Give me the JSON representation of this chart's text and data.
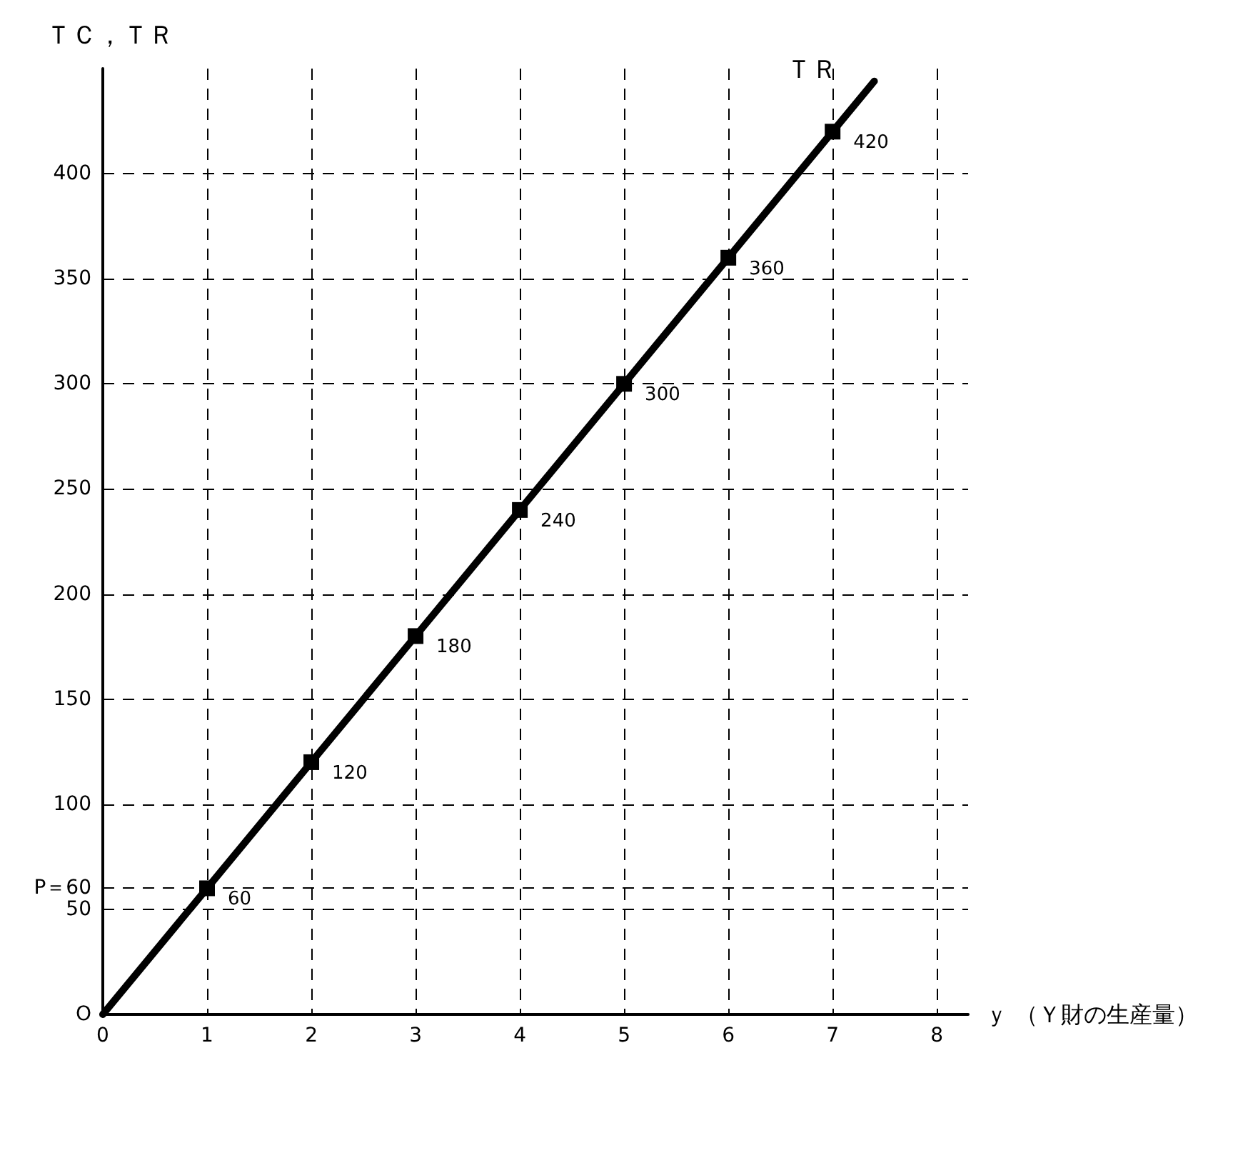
{
  "chart_data": {
    "type": "line",
    "xlabel": "ｙ （Ｙ財の生産量）",
    "ylabel": "ＴＣ，ＴＲ",
    "series": [
      {
        "name": "ＴＲ",
        "color": "#000000",
        "x": [
          0,
          1,
          2,
          3,
          4,
          5,
          6,
          7,
          7.4
        ],
        "values": [
          0,
          60,
          120,
          180,
          240,
          300,
          360,
          420,
          444
        ],
        "value_labels": [
          null,
          "60",
          "120",
          "180",
          "240",
          "300",
          "360",
          "420",
          null
        ]
      }
    ],
    "xlim": [
      0,
      8.3
    ],
    "xticks": [
      0,
      1,
      2,
      3,
      4,
      5,
      6,
      7,
      8
    ],
    "ylim": [
      0,
      450
    ],
    "yticks": [
      {
        "value": 0,
        "label": "O"
      },
      50,
      {
        "value": 60,
        "label": "P＝60"
      },
      100,
      150,
      200,
      250,
      300,
      350,
      400
    ],
    "grid": true,
    "legend": false,
    "marker": "square",
    "line_style": "solid"
  }
}
